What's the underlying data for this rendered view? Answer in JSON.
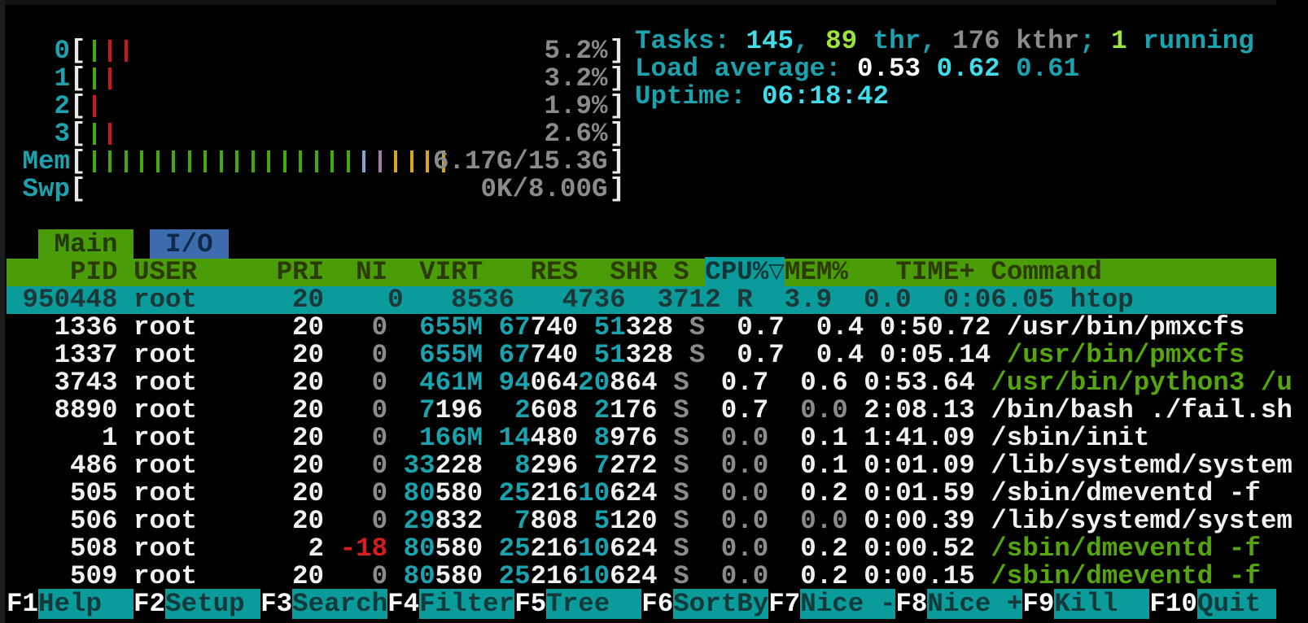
{
  "app": "htop",
  "colors": {
    "background": "#000000",
    "accent_teal": "#1aa3ae",
    "bright_cyan": "#41dce9",
    "lime": "#9ce33b",
    "gray": "#8b8b8b",
    "red": "#d61e1e",
    "command_green": "#55a60d",
    "header_green_bg": "#4a9c09",
    "selection_teal_bg": "#0b9b9b",
    "tab_blue_bg": "#3c6cae",
    "meter_green": "#42a90c",
    "meter_red": "#d11414",
    "meter_blue": "#82a5d8",
    "meter_magenta": "#a37ba8",
    "meter_yellow": "#d8a718"
  },
  "meters": [
    {
      "id": "cpu-0",
      "label": "  0",
      "value": "5.2%",
      "bars": [
        [
          "green",
          1
        ],
        [
          "red",
          2
        ]
      ]
    },
    {
      "id": "cpu-1",
      "label": "  1",
      "value": "3.2%",
      "bars": [
        [
          "green",
          1
        ],
        [
          "red",
          1
        ]
      ]
    },
    {
      "id": "cpu-2",
      "label": "  2",
      "value": "1.9%",
      "bars": [
        [
          "red",
          1
        ]
      ]
    },
    {
      "id": "cpu-3",
      "label": "  3",
      "value": "2.6%",
      "bars": [
        [
          "green",
          1
        ],
        [
          "red",
          1
        ]
      ]
    },
    {
      "id": "mem",
      "label": "Mem",
      "value": "6.17G/15.3G",
      "bars": [
        [
          "green",
          17
        ],
        [
          "blue",
          1
        ],
        [
          "magenta",
          1
        ],
        [
          "yellow",
          4
        ]
      ]
    },
    {
      "id": "swp",
      "label": "Swp",
      "value": "0K/8.00G",
      "bars": []
    }
  ],
  "info": {
    "tasks_line": [
      [
        "t",
        "Tasks: "
      ],
      [
        "c",
        "145"
      ],
      [
        "t",
        ", "
      ],
      [
        "lg",
        "89"
      ],
      [
        "t",
        " thr"
      ],
      [
        "t",
        ", "
      ],
      [
        "g",
        "176 kthr"
      ],
      [
        "t",
        "; "
      ],
      [
        "lg",
        "1"
      ],
      [
        "t",
        " running"
      ]
    ],
    "load_line": [
      [
        "t",
        "Load average: "
      ],
      [
        "wb",
        "0.53 "
      ],
      [
        "c",
        "0.62 "
      ],
      [
        "t",
        "0.61"
      ]
    ],
    "uptime_line": [
      [
        "t",
        "Uptime: "
      ],
      [
        "c",
        "06:18:42"
      ]
    ],
    "tasks": {
      "total": "145",
      "threads": "89",
      "kernel_threads": "176",
      "running": "1"
    },
    "load_average": [
      "0.53",
      "0.62",
      "0.61"
    ],
    "uptime": "06:18:42"
  },
  "tabs": {
    "main": " Main ",
    "io": " I/O "
  },
  "table": {
    "sort_column": "CPU%",
    "sort_indicator": "▽",
    "columns": [
      {
        "name": "pid",
        "label": "    PID"
      },
      {
        "name": "gap-1",
        "label": " "
      },
      {
        "name": "user",
        "label": "USER    "
      },
      {
        "name": "gap-2",
        "label": " "
      },
      {
        "name": "pri",
        "label": "PRI"
      },
      {
        "name": "ni",
        "label": "  NI"
      },
      {
        "name": "virt",
        "label": "  VIRT"
      },
      {
        "name": "res",
        "label": "   RES"
      },
      {
        "name": "shr",
        "label": "  SHR"
      },
      {
        "name": "state",
        "label": " S "
      },
      {
        "name": "cpu",
        "label": "CPU%▽",
        "sort": true
      },
      {
        "name": "mem",
        "label": "MEM%"
      },
      {
        "name": "time",
        "label": "   TIME+"
      },
      {
        "name": "command",
        "label": " Command             "
      }
    ],
    "rows": [
      {
        "pid": "950448",
        "selected": true,
        "segments": [
          [
            "d",
            " 950448 root      20    0   8536   4736  3712 R  3.9  0.0  0:06.05 htop"
          ]
        ]
      },
      {
        "pid": "1336",
        "selected": false,
        "segments": [
          [
            "w",
            "   1336 root      20"
          ],
          [
            "g",
            "   0"
          ],
          [
            "t",
            "  655M"
          ],
          [
            "t",
            " 67"
          ],
          [
            "w",
            "740"
          ],
          [
            "t",
            " 51"
          ],
          [
            "w",
            "328"
          ],
          [
            "g",
            " S "
          ],
          [
            "w",
            " 0.7  0.4 0:50.72 "
          ],
          [
            "w",
            "/usr/bin/pmxcfs"
          ]
        ]
      },
      {
        "pid": "1337",
        "selected": false,
        "segments": [
          [
            "w",
            "   1337 root      20"
          ],
          [
            "g",
            "   0"
          ],
          [
            "t",
            "  655M"
          ],
          [
            "t",
            " 67"
          ],
          [
            "w",
            "740"
          ],
          [
            "t",
            " 51"
          ],
          [
            "w",
            "328"
          ],
          [
            "g",
            " S "
          ],
          [
            "w",
            " 0.7  0.4 0:05.14 "
          ],
          [
            "G",
            "/usr/bin/pmxcfs"
          ]
        ]
      },
      {
        "pid": "3743",
        "selected": false,
        "segments": [
          [
            "w",
            "   3743 root      20"
          ],
          [
            "g",
            "   0"
          ],
          [
            "t",
            "  461M"
          ],
          [
            "t",
            " 94"
          ],
          [
            "w",
            "064"
          ],
          [
            "t",
            "20"
          ],
          [
            "w",
            "864"
          ],
          [
            "g",
            " S "
          ],
          [
            "w",
            " 0.7  0.6 0:53.64 "
          ],
          [
            "G",
            "/usr/bin/python3 /u"
          ]
        ]
      },
      {
        "pid": "8890",
        "selected": false,
        "segments": [
          [
            "w",
            "   8890 root      20"
          ],
          [
            "g",
            "   0"
          ],
          [
            "t",
            "  7"
          ],
          [
            "w",
            "196"
          ],
          [
            "t",
            "  2"
          ],
          [
            "w",
            "608"
          ],
          [
            "t",
            " 2"
          ],
          [
            "w",
            "176"
          ],
          [
            "g",
            " S "
          ],
          [
            "w",
            " 0.7 "
          ],
          [
            "g",
            " 0.0"
          ],
          [
            "w",
            " 2:08.13 "
          ],
          [
            "w",
            "/bin/bash ./fail.sh"
          ]
        ]
      },
      {
        "pid": "1",
        "selected": false,
        "segments": [
          [
            "w",
            "      1 root      20"
          ],
          [
            "g",
            "   0"
          ],
          [
            "t",
            "  166M"
          ],
          [
            "t",
            " 14"
          ],
          [
            "w",
            "480"
          ],
          [
            "t",
            " 8"
          ],
          [
            "w",
            "976"
          ],
          [
            "g",
            " S "
          ],
          [
            "g",
            " 0.0"
          ],
          [
            "w",
            "  0.1 1:41.09 "
          ],
          [
            "w",
            "/sbin/init"
          ]
        ]
      },
      {
        "pid": "486",
        "selected": false,
        "segments": [
          [
            "w",
            "    486 root      20"
          ],
          [
            "g",
            "   0"
          ],
          [
            "t",
            " 33"
          ],
          [
            "w",
            "228"
          ],
          [
            "t",
            "  8"
          ],
          [
            "w",
            "296"
          ],
          [
            "t",
            " 7"
          ],
          [
            "w",
            "272"
          ],
          [
            "g",
            " S "
          ],
          [
            "g",
            " 0.0"
          ],
          [
            "w",
            "  0.1 0:01.09 "
          ],
          [
            "w",
            "/lib/systemd/system"
          ]
        ]
      },
      {
        "pid": "505",
        "selected": false,
        "segments": [
          [
            "w",
            "    505 root      20"
          ],
          [
            "g",
            "   0"
          ],
          [
            "t",
            " 80"
          ],
          [
            "w",
            "580"
          ],
          [
            "t",
            " 25"
          ],
          [
            "w",
            "216"
          ],
          [
            "t",
            "10"
          ],
          [
            "w",
            "624"
          ],
          [
            "g",
            " S "
          ],
          [
            "g",
            " 0.0"
          ],
          [
            "w",
            "  0.2 0:01.59 "
          ],
          [
            "w",
            "/sbin/dmeventd -f"
          ]
        ]
      },
      {
        "pid": "506",
        "selected": false,
        "segments": [
          [
            "w",
            "    506 root      20"
          ],
          [
            "g",
            "   0"
          ],
          [
            "t",
            " 29"
          ],
          [
            "w",
            "832"
          ],
          [
            "t",
            "  7"
          ],
          [
            "w",
            "808"
          ],
          [
            "t",
            " 5"
          ],
          [
            "w",
            "120"
          ],
          [
            "g",
            " S "
          ],
          [
            "g",
            " 0.0 "
          ],
          [
            "g",
            " 0.0"
          ],
          [
            "w",
            " 0:00.39 "
          ],
          [
            "w",
            "/lib/systemd/system"
          ]
        ]
      },
      {
        "pid": "508",
        "selected": false,
        "segments": [
          [
            "w",
            "    508 root       2"
          ],
          [
            "r",
            " -18"
          ],
          [
            "t",
            " 80"
          ],
          [
            "w",
            "580"
          ],
          [
            "t",
            " 25"
          ],
          [
            "w",
            "216"
          ],
          [
            "t",
            "10"
          ],
          [
            "w",
            "624"
          ],
          [
            "g",
            " S "
          ],
          [
            "g",
            " 0.0"
          ],
          [
            "w",
            "  0.2 0:00.52 "
          ],
          [
            "G",
            "/sbin/dmeventd -f"
          ]
        ]
      },
      {
        "pid": "509",
        "selected": false,
        "segments": [
          [
            "w",
            "    509 root      20"
          ],
          [
            "g",
            "   0"
          ],
          [
            "t",
            " 80"
          ],
          [
            "w",
            "580"
          ],
          [
            "t",
            " 25"
          ],
          [
            "w",
            "216"
          ],
          [
            "t",
            "10"
          ],
          [
            "w",
            "624"
          ],
          [
            "g",
            " S "
          ],
          [
            "g",
            " 0.0"
          ],
          [
            "w",
            "  0.2 0:00.15 "
          ],
          [
            "G",
            "/sbin/dmeventd -f"
          ]
        ]
      }
    ]
  },
  "fkeys": [
    {
      "key": "F1",
      "label": "Help  "
    },
    {
      "key": "F2",
      "label": "Setup "
    },
    {
      "key": "F3",
      "label": "Search"
    },
    {
      "key": "F4",
      "label": "Filter"
    },
    {
      "key": "F5",
      "label": "Tree  "
    },
    {
      "key": "F6",
      "label": "SortBy"
    },
    {
      "key": "F7",
      "label": "Nice -"
    },
    {
      "key": "F8",
      "label": "Nice +"
    },
    {
      "key": "F9",
      "label": "Kill  "
    },
    {
      "key": "F10",
      "label": "Quit "
    }
  ]
}
